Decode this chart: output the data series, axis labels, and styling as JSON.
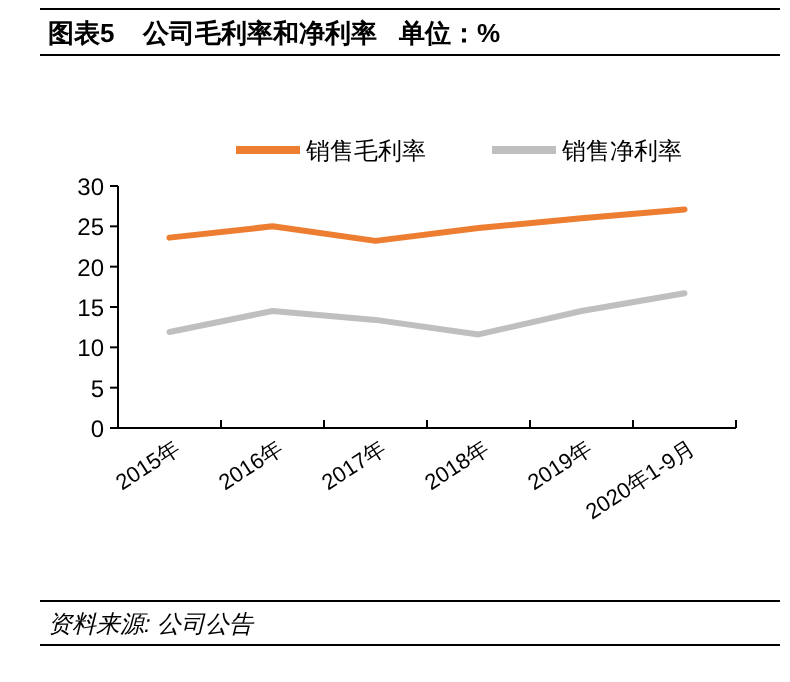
{
  "chart_data": {
    "type": "line",
    "title": "图表5    公司毛利率和净利率   单位：%",
    "categories": [
      "2015年",
      "2016年",
      "2017年",
      "2018年",
      "2019年",
      "2020年1-9月"
    ],
    "series": [
      {
        "name": "销售毛利率",
        "color": "#ed7d31",
        "values": [
          23.6,
          25.0,
          23.2,
          24.8,
          26.0,
          27.1
        ]
      },
      {
        "name": "销售净利率",
        "color": "#bfbfbf",
        "values": [
          11.9,
          14.5,
          13.4,
          11.6,
          14.5,
          16.7
        ]
      }
    ],
    "ylim": [
      0,
      30
    ],
    "yticks": [
      0,
      5,
      10,
      15,
      20,
      25,
      30
    ],
    "legend": "top",
    "marker": "none",
    "line_style": "solid",
    "grid": false,
    "annotations": [
      "资料来源: 公司公告"
    ]
  }
}
